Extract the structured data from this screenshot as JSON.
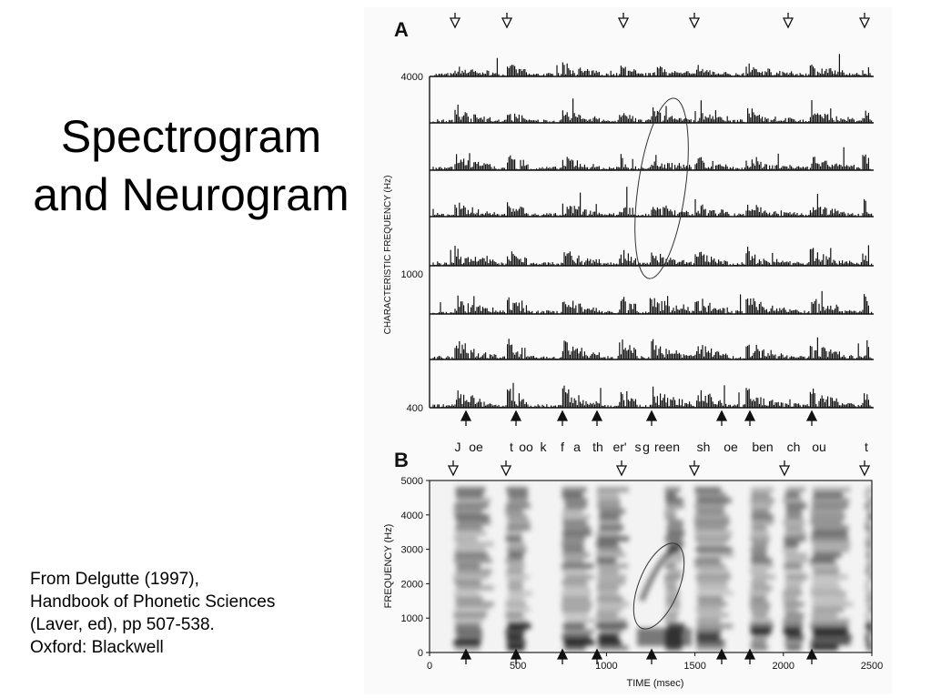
{
  "slide": {
    "title": "Spectrogram and Neurogram",
    "citation": [
      "From Delgutte (1997),",
      "Handbook of Phonetic Sciences",
      "(Laver, ed), pp 507-538.",
      "Oxford: Blackwell"
    ]
  },
  "figure": {
    "panel_a": {
      "label": "A",
      "y_axis_label": "CHARACTERISTIC FREQUENCY (Hz)",
      "y_tick_labels": [
        "4000",
        "1000",
        "400"
      ]
    },
    "phonemes": [
      "J",
      "oe",
      "t",
      "oo",
      "k",
      "f",
      "a",
      "th",
      "er'",
      "s",
      "g",
      "reen",
      "sh",
      "oe",
      "ben",
      "ch",
      "ou",
      "t"
    ],
    "panel_b": {
      "label": "B",
      "y_axis_label": "FREQUENCY (Hz)",
      "y_tick_labels": [
        "5000",
        "4000",
        "3000",
        "2000",
        "1000",
        "0"
      ],
      "x_tick_labels": [
        "0",
        "500",
        "1000",
        "1500",
        "2000",
        "2500"
      ],
      "x_axis_label": "TIME (msec)"
    }
  }
}
